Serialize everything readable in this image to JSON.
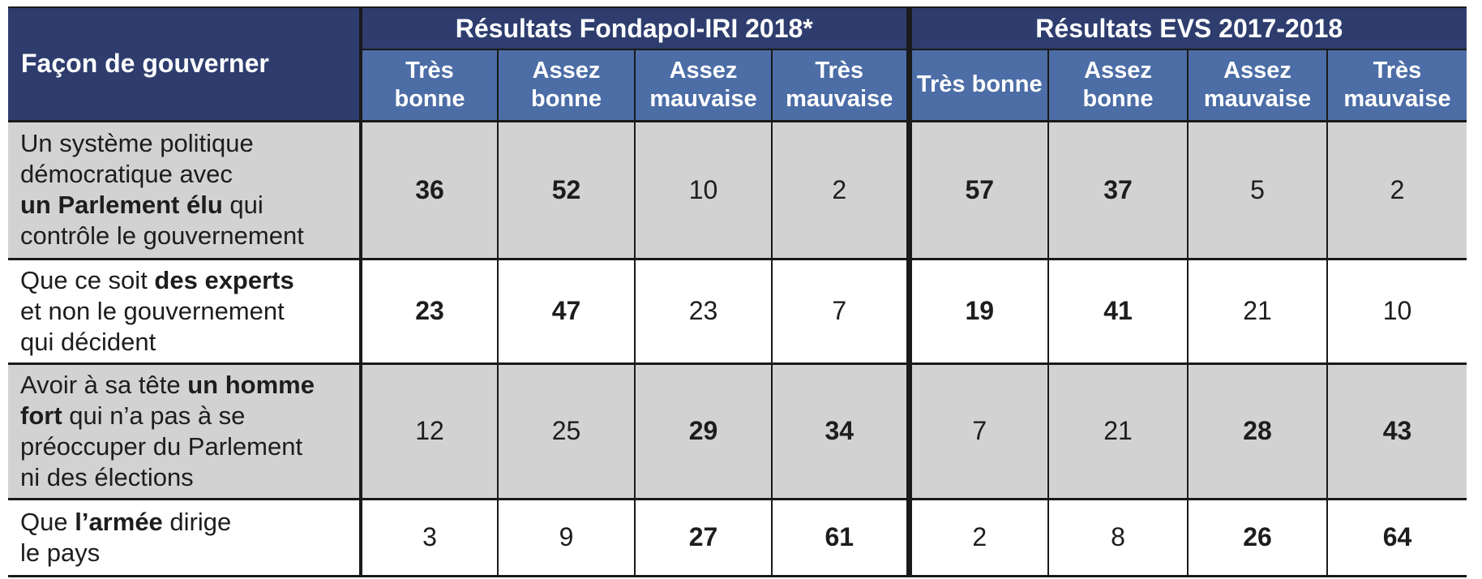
{
  "table": {
    "corner_label": "Façon de gouverner",
    "groups": [
      {
        "label": "Résultats Fondapol-IRI 2018*"
      },
      {
        "label": "Résultats EVS 2017-2018"
      }
    ],
    "sub_headers": [
      "Très bonne",
      "Assez bonne",
      "Assez mauvaise",
      "Très mauvaise"
    ],
    "rows": [
      {
        "shaded": true,
        "label_segments": [
          {
            "text": "Un système politique\ndémocratique avec\n",
            "bold": false
          },
          {
            "text": "un Parlement élu",
            "bold": true
          },
          {
            "text": " qui\ncontrôle le gouvernement",
            "bold": false
          }
        ],
        "fondapol": [
          {
            "value": "36",
            "bold": true
          },
          {
            "value": "52",
            "bold": true
          },
          {
            "value": "10",
            "bold": false
          },
          {
            "value": "2",
            "bold": false
          }
        ],
        "evs": [
          {
            "value": "57",
            "bold": true
          },
          {
            "value": "37",
            "bold": true
          },
          {
            "value": "5",
            "bold": false
          },
          {
            "value": "2",
            "bold": false
          }
        ]
      },
      {
        "shaded": false,
        "label_segments": [
          {
            "text": "Que ce soit ",
            "bold": false
          },
          {
            "text": "des experts",
            "bold": true
          },
          {
            "text": "\net non le gouvernement\nqui décident",
            "bold": false
          }
        ],
        "fondapol": [
          {
            "value": "23",
            "bold": true
          },
          {
            "value": "47",
            "bold": true
          },
          {
            "value": "23",
            "bold": false
          },
          {
            "value": "7",
            "bold": false
          }
        ],
        "evs": [
          {
            "value": "19",
            "bold": true
          },
          {
            "value": "41",
            "bold": true
          },
          {
            "value": "21",
            "bold": false
          },
          {
            "value": "10",
            "bold": false
          }
        ]
      },
      {
        "shaded": true,
        "label_segments": [
          {
            "text": "Avoir à sa tête ",
            "bold": false
          },
          {
            "text": "un homme\nfort",
            "bold": true
          },
          {
            "text": " qui n’a pas à se\npréoccuper du Parlement\nni des élections",
            "bold": false
          }
        ],
        "fondapol": [
          {
            "value": "12",
            "bold": false
          },
          {
            "value": "25",
            "bold": false
          },
          {
            "value": "29",
            "bold": true
          },
          {
            "value": "34",
            "bold": true
          }
        ],
        "evs": [
          {
            "value": "7",
            "bold": false
          },
          {
            "value": "21",
            "bold": false
          },
          {
            "value": "28",
            "bold": true
          },
          {
            "value": "43",
            "bold": true
          }
        ]
      },
      {
        "shaded": false,
        "label_segments": [
          {
            "text": "Que ",
            "bold": false
          },
          {
            "text": "l’armée",
            "bold": true
          },
          {
            "text": " dirige\nle pays",
            "bold": false
          }
        ],
        "fondapol": [
          {
            "value": "3",
            "bold": false
          },
          {
            "value": "9",
            "bold": false
          },
          {
            "value": "27",
            "bold": true
          },
          {
            "value": "61",
            "bold": true
          }
        ],
        "evs": [
          {
            "value": "2",
            "bold": false
          },
          {
            "value": "8",
            "bold": false
          },
          {
            "value": "26",
            "bold": true
          },
          {
            "value": "64",
            "bold": true
          }
        ]
      }
    ]
  },
  "colors": {
    "header_navy": "#2e3d6e",
    "subheader_blue": "#4c6da6",
    "shaded_row_gray": "#d2d2d2",
    "border_black": "#1a1a1a",
    "text_dark": "#1d1d1b",
    "text_white": "#ffffff"
  },
  "chart_data": {
    "type": "table",
    "row_header": "Façon de gouverner",
    "column_groups": [
      "Résultats Fondapol-IRI 2018*",
      "Résultats EVS 2017-2018"
    ],
    "columns": [
      "Très bonne",
      "Assez bonne",
      "Assez mauvaise",
      "Très mauvaise"
    ],
    "rows": [
      {
        "label": "Un système politique démocratique avec un Parlement élu qui contrôle le gouvernement",
        "fondapol_iri_2018": [
          36,
          52,
          10,
          2
        ],
        "evs_2017_2018": [
          57,
          37,
          5,
          2
        ]
      },
      {
        "label": "Que ce soit des experts et non le gouvernement qui décident",
        "fondapol_iri_2018": [
          23,
          47,
          23,
          7
        ],
        "evs_2017_2018": [
          19,
          41,
          21,
          10
        ]
      },
      {
        "label": "Avoir à sa tête un homme fort qui n’a pas à se préoccuper du Parlement ni des élections",
        "fondapol_iri_2018": [
          12,
          25,
          29,
          34
        ],
        "evs_2017_2018": [
          7,
          21,
          28,
          43
        ]
      },
      {
        "label": "Que l’armée dirige le pays",
        "fondapol_iri_2018": [
          3,
          9,
          27,
          61
        ],
        "evs_2017_2018": [
          2,
          8,
          26,
          64
        ]
      }
    ]
  }
}
